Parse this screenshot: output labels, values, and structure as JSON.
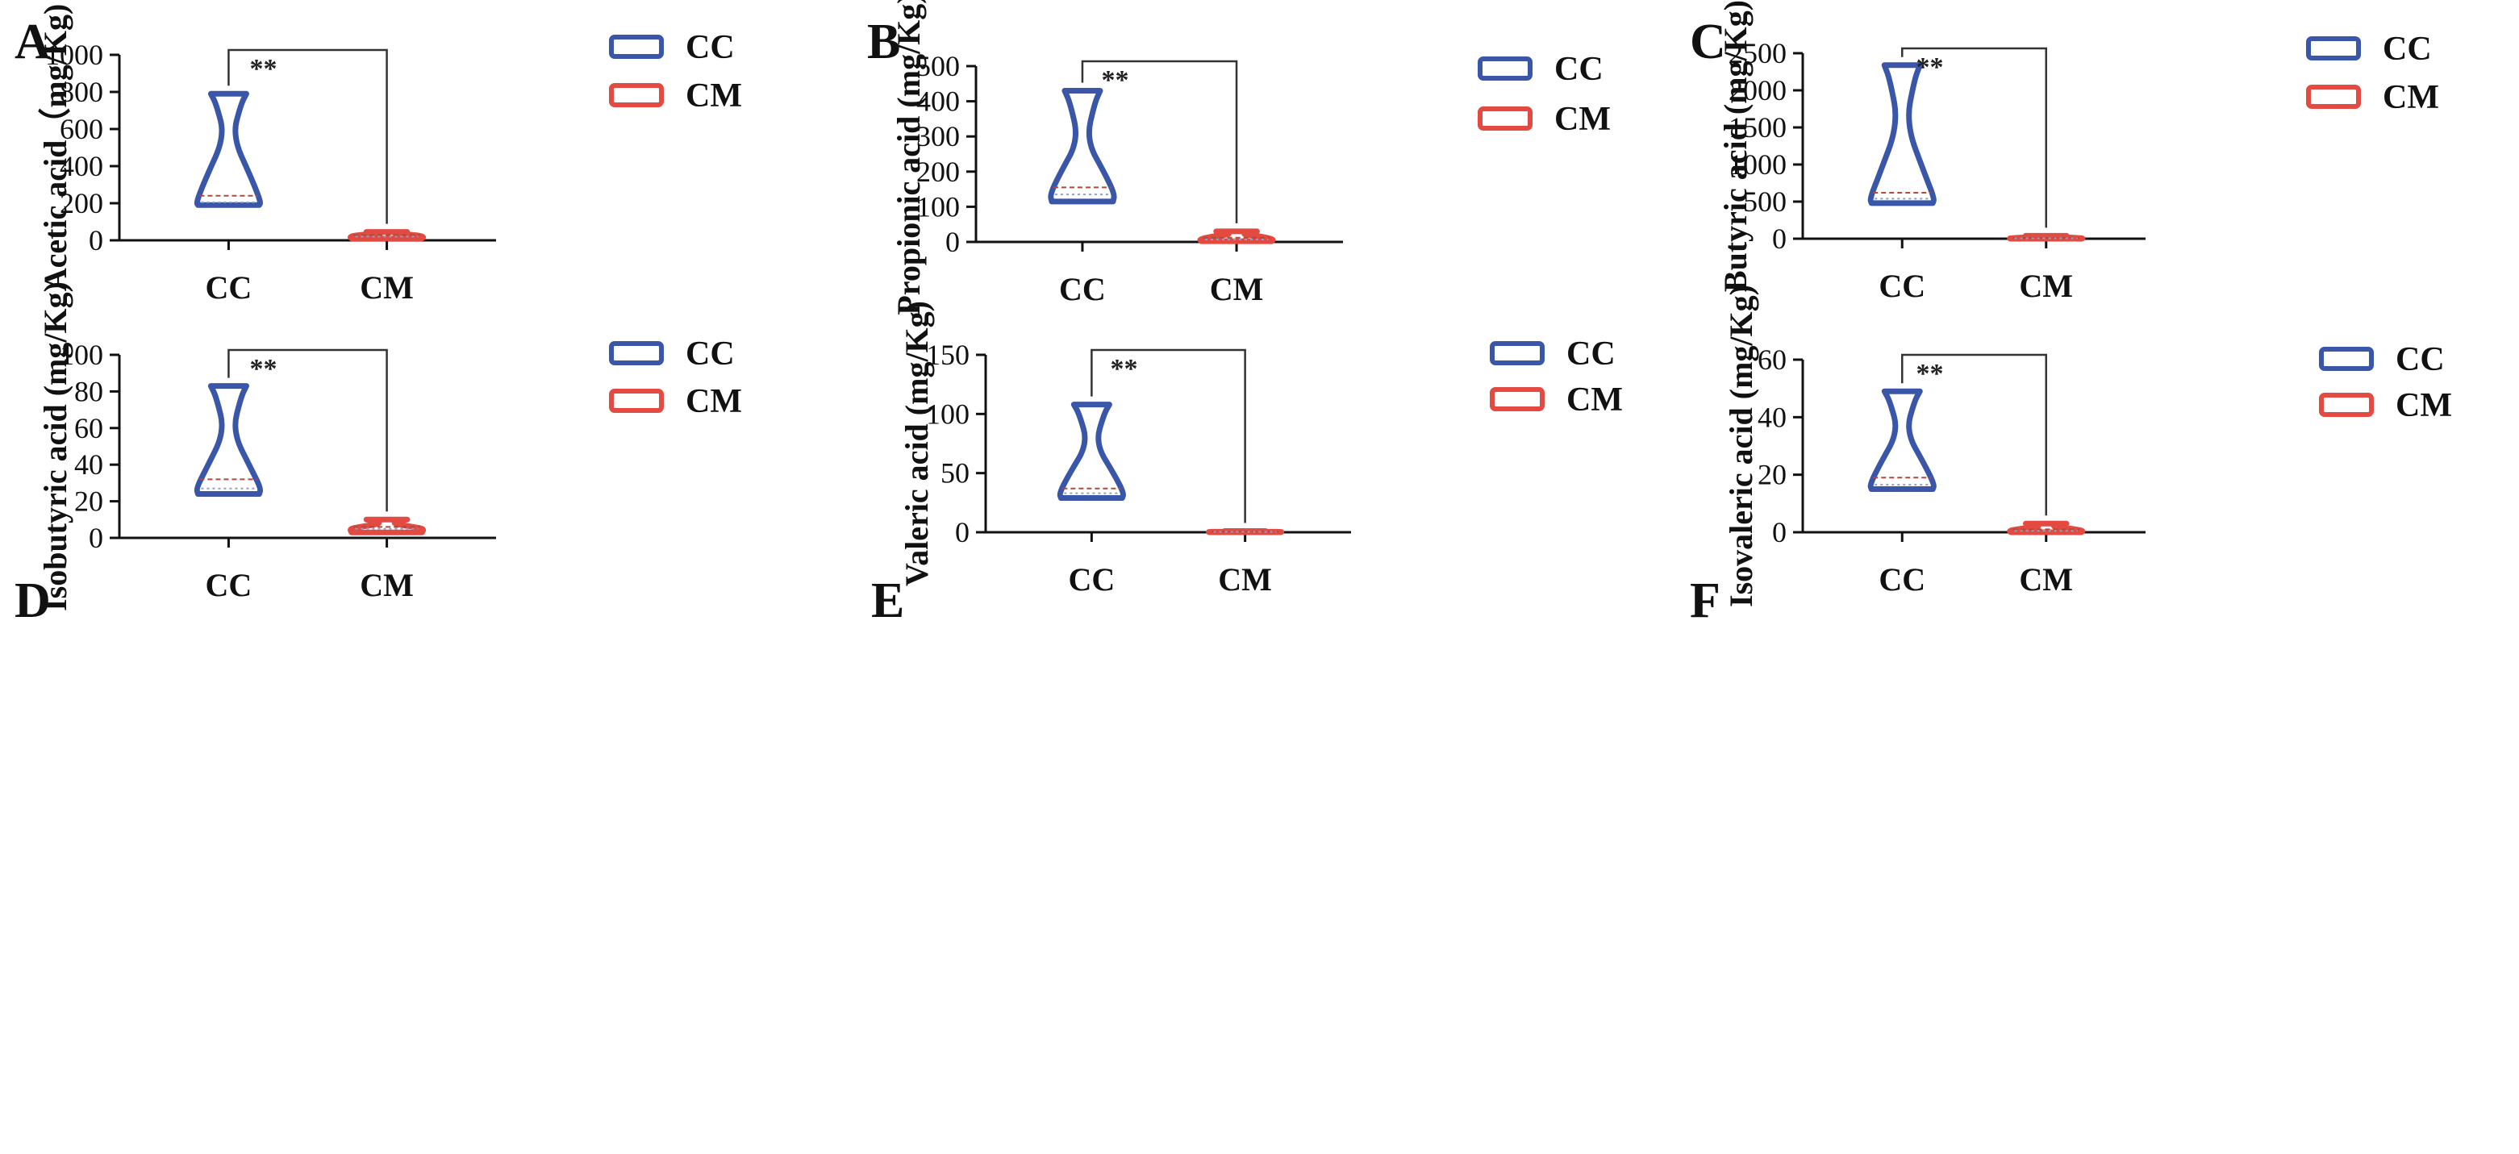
{
  "figure": {
    "colors": {
      "CC": "#3a56a8",
      "CM": "#e24a42",
      "axis": "#111111",
      "bracket": "#333333",
      "median": "#b04a3a",
      "quartile": "#8fa0c8"
    }
  },
  "chart_data": [
    {
      "panel": "A",
      "type": "violin",
      "ylabel": "Acetic acid（mg/Kg)",
      "ylim": [
        0,
        1000
      ],
      "yticks": [
        "0",
        "200",
        "400",
        "600",
        "800",
        "1000"
      ],
      "categories": [
        "CC",
        "CM"
      ],
      "legend": [
        "CC",
        "CM"
      ],
      "significance": "**",
      "series": [
        {
          "name": "CC",
          "min": 190,
          "max": 790,
          "median": 240,
          "q1": 205,
          "wide_y": 330,
          "neck_y": 560
        },
        {
          "name": "CM",
          "min": 10,
          "max": 45,
          "median": 28,
          "q1": 20,
          "wide_y": 30,
          "neck_y": 38
        }
      ]
    },
    {
      "panel": "B",
      "type": "violin",
      "ylabel": "Propionic acid (mg/Kg)",
      "ylim": [
        0,
        500
      ],
      "yticks": [
        "0",
        "100",
        "200",
        "300",
        "400",
        "500"
      ],
      "categories": [
        "CC",
        "CM"
      ],
      "legend": [
        "CC",
        "CM"
      ],
      "significance": "**",
      "series": [
        {
          "name": "CC",
          "min": 115,
          "max": 430,
          "median": 155,
          "q1": 135,
          "wide_y": 190,
          "neck_y": 290
        },
        {
          "name": "CM",
          "min": 2,
          "max": 30,
          "median": 12,
          "q1": 7,
          "wide_y": 15,
          "neck_y": 22
        }
      ]
    },
    {
      "panel": "C",
      "type": "violin",
      "ylabel": "Butyric acid (mg/Kg)",
      "ylim": [
        0,
        2500
      ],
      "yticks": [
        "0",
        "500",
        "1000",
        "1500",
        "2000",
        "2500"
      ],
      "categories": [
        "CC",
        "CM"
      ],
      "legend": [
        "CC",
        "CM"
      ],
      "significance": "**",
      "series": [
        {
          "name": "CC",
          "min": 480,
          "max": 2340,
          "median": 620,
          "q1": 540,
          "wide_y": 850,
          "neck_y": 1550
        },
        {
          "name": "CM",
          "min": 0,
          "max": 40,
          "median": 10,
          "q1": 5,
          "wide_y": 15,
          "neck_y": 25
        }
      ]
    },
    {
      "panel": "D",
      "type": "violin",
      "ylabel": "Isobutyric acid (mg/Kg)",
      "ylim": [
        0,
        100
      ],
      "yticks": [
        "0",
        "20",
        "40",
        "60",
        "80",
        "100"
      ],
      "categories": [
        "CC",
        "CM"
      ],
      "legend": [
        "CC",
        "CM"
      ],
      "significance": "**",
      "series": [
        {
          "name": "CC",
          "min": 24,
          "max": 83,
          "median": 32,
          "q1": 27,
          "wide_y": 37,
          "neck_y": 58
        },
        {
          "name": "CM",
          "min": 3,
          "max": 10,
          "median": 6,
          "q1": 5,
          "wide_y": 6,
          "neck_y": 8
        }
      ]
    },
    {
      "panel": "E",
      "type": "violin",
      "ylabel": "Valeric acid (mg/Kg)",
      "ylim": [
        0,
        150
      ],
      "yticks": [
        "0",
        "50",
        "100",
        "150"
      ],
      "categories": [
        "CC",
        "CM"
      ],
      "legend": [
        "CC",
        "CM"
      ],
      "significance": "**",
      "series": [
        {
          "name": "CC",
          "min": 29,
          "max": 108,
          "median": 37,
          "q1": 33,
          "wide_y": 48,
          "neck_y": 75
        },
        {
          "name": "CM",
          "min": 0,
          "max": 1,
          "median": 0.5,
          "q1": 0.3,
          "wide_y": 0.5,
          "neck_y": 0.8
        }
      ]
    },
    {
      "panel": "F",
      "type": "violin",
      "ylabel": "Isovaleric acid (mg/Kg)",
      "ylim": [
        0,
        60
      ],
      "yticks": [
        "0",
        "20",
        "40",
        "60"
      ],
      "categories": [
        "CC",
        "CM"
      ],
      "legend": [
        "CC",
        "CM"
      ],
      "significance": "**",
      "series": [
        {
          "name": "CC",
          "min": 15,
          "max": 49,
          "median": 19,
          "q1": 16.5,
          "wide_y": 23,
          "neck_y": 35
        },
        {
          "name": "CM",
          "min": 0,
          "max": 3,
          "median": 1,
          "q1": 0.5,
          "wide_y": 1.2,
          "neck_y": 2
        }
      ]
    }
  ]
}
